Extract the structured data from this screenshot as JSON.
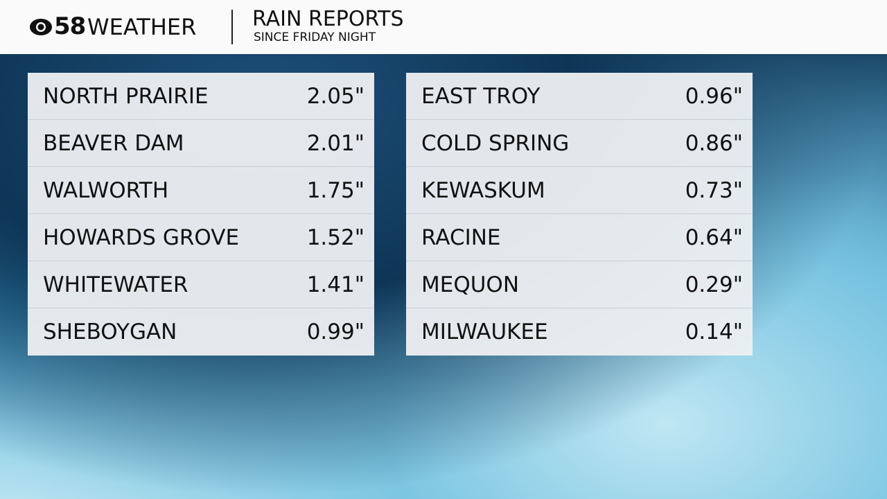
{
  "header": {
    "station": "58",
    "label": "WEATHER",
    "title": "RAIN REPORTS",
    "subtitle": "SINCE FRIDAY NIGHT"
  },
  "tables": [
    {
      "rows": [
        [
          "NORTH PRAIRIE",
          "2.05\""
        ],
        [
          "BEAVER DAM",
          "2.01\""
        ],
        [
          "WALWORTH",
          "1.75\""
        ],
        [
          "HOWARDS GROVE",
          "1.52\""
        ],
        [
          "WHITEWATER",
          "1.41\""
        ],
        [
          "SHEBOYGAN",
          "0.99\""
        ]
      ]
    },
    {
      "rows": [
        [
          "EAST TROY",
          "0.96\""
        ],
        [
          "COLD SPRING",
          "0.86\""
        ],
        [
          "KEWASKUM",
          "0.73\""
        ],
        [
          "RACINE",
          "0.64\""
        ],
        [
          "MEQUON",
          "0.29\""
        ],
        [
          "MILWAUKEE",
          "0.14\""
        ]
      ]
    }
  ]
}
